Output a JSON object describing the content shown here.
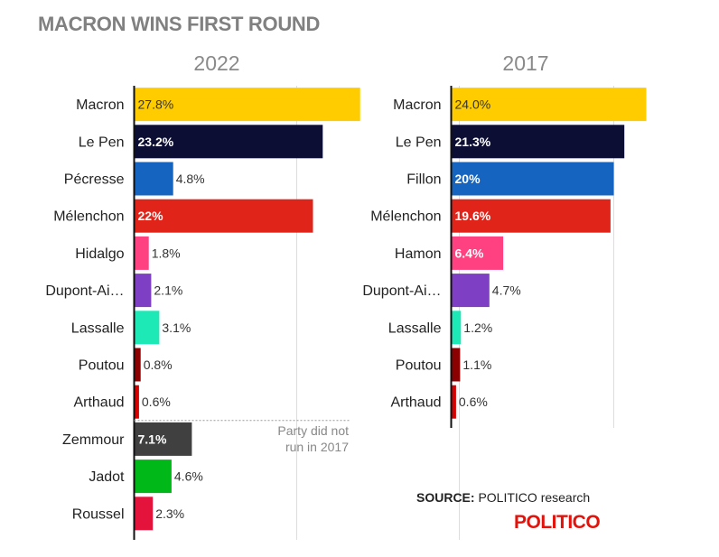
{
  "title": "MACRON WINS FIRST ROUND",
  "source": {
    "label": "SOURCE:",
    "text": "POLITICO research"
  },
  "logo": "POLITICO",
  "chart_data": [
    {
      "type": "bar",
      "orientation": "horizontal",
      "title": "2022",
      "xlim": [
        0,
        40
      ],
      "grid": true,
      "categories": [
        "Macron",
        "Le Pen",
        "Pécresse",
        "Mélenchon",
        "Hidalgo",
        "Dupont-Ai…",
        "Lassalle",
        "Poutou",
        "Arthaud",
        "Zemmour",
        "Jadot",
        "Roussel"
      ],
      "values": [
        27.8,
        23.2,
        4.8,
        22,
        1.8,
        2.1,
        3.1,
        0.8,
        0.6,
        7.1,
        4.6,
        2.3
      ],
      "labels": [
        "27.8%",
        "23.2%",
        "4.8%",
        "22%",
        "1.8%",
        "2.1%",
        "3.1%",
        "0.8%",
        "0.6%",
        "7.1%",
        "4.6%",
        "2.3%"
      ],
      "colors": [
        "#ffcc00",
        "#0c0e33",
        "#1565c0",
        "#e02419",
        "#ff4081",
        "#7e3fc4",
        "#1de9b6",
        "#8b0000",
        "#d50000",
        "#404040",
        "#00b818",
        "#e3133c"
      ],
      "label_inside": [
        true,
        true,
        false,
        true,
        false,
        false,
        false,
        false,
        false,
        true,
        false,
        false
      ],
      "label_color": [
        "#333333",
        "#ffffff",
        "#333333",
        "#ffffff",
        "#333333",
        "#333333",
        "#333333",
        "#333333",
        "#333333",
        "#ffffff",
        "#333333",
        "#333333"
      ],
      "annotation": {
        "after_index": 8,
        "text": [
          "Party did not",
          "run in 2017"
        ]
      }
    },
    {
      "type": "bar",
      "orientation": "horizontal",
      "title": "2017",
      "xlim": [
        0,
        40
      ],
      "grid": true,
      "categories": [
        "Macron",
        "Le Pen",
        "Fillon",
        "Mélenchon",
        "Hamon",
        "Dupont-Ai…",
        "Lassalle",
        "Poutou",
        "Arthaud"
      ],
      "values": [
        24.0,
        21.3,
        20,
        19.6,
        6.4,
        4.7,
        1.2,
        1.1,
        0.6
      ],
      "labels": [
        "24.0%",
        "21.3%",
        "20%",
        "19.6%",
        "6.4%",
        "4.7%",
        "1.2%",
        "1.1%",
        "0.6%"
      ],
      "colors": [
        "#ffcc00",
        "#0c0e33",
        "#1565c0",
        "#e02419",
        "#ff4081",
        "#7e3fc4",
        "#1de9b6",
        "#8b0000",
        "#d50000"
      ],
      "label_inside": [
        true,
        true,
        true,
        true,
        true,
        false,
        false,
        false,
        false
      ],
      "label_color": [
        "#333333",
        "#ffffff",
        "#ffffff",
        "#ffffff",
        "#ffffff",
        "#333333",
        "#333333",
        "#333333",
        "#333333"
      ]
    }
  ]
}
